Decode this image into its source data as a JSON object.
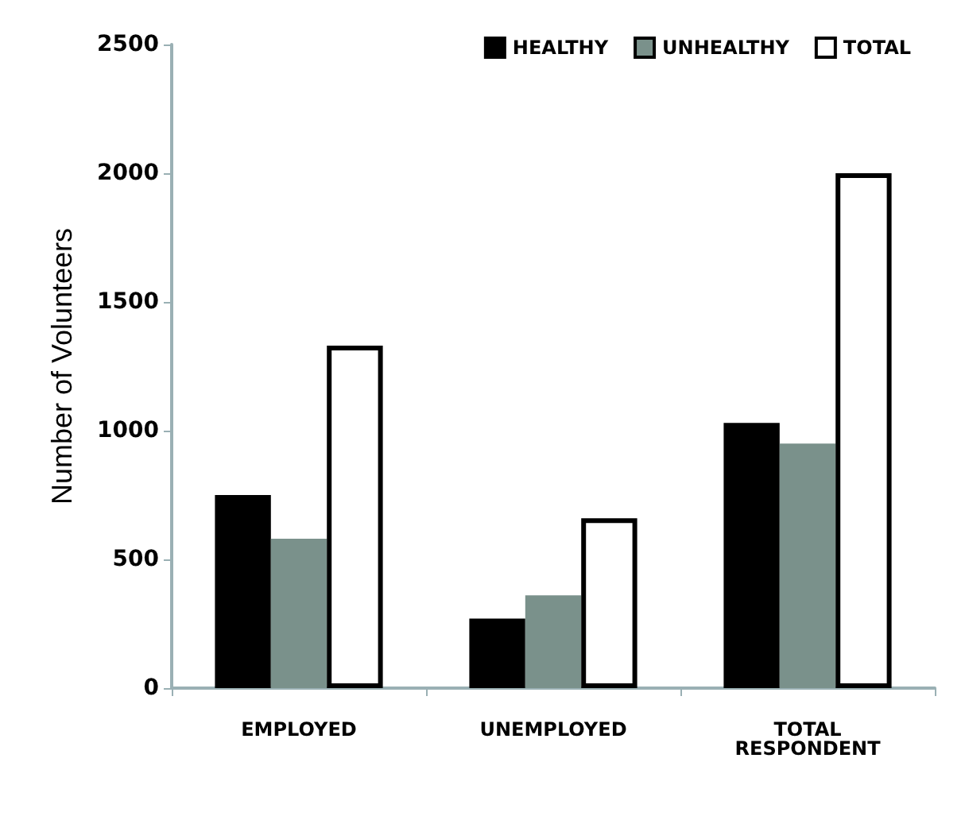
{
  "chart_data": {
    "type": "bar",
    "ylabel": "Number of Volunteers",
    "categories": [
      "EMPLOYED",
      "UNEMPLOYED",
      "TOTAL RESPONDENT"
    ],
    "series": [
      {
        "name": "HEALTHY",
        "color": "#000000",
        "values": [
          750,
          270,
          1030
        ]
      },
      {
        "name": "UNHEALTHY",
        "color": "#7a918b",
        "values": [
          580,
          360,
          950
        ]
      },
      {
        "name": "TOTAL",
        "color": "#ffffff",
        "values": [
          1330,
          660,
          2000
        ]
      }
    ],
    "ylim": [
      0,
      2500
    ],
    "yticks": [
      0,
      500,
      1000,
      1500,
      2000,
      2500
    ],
    "grid": false,
    "legend": "top right"
  }
}
